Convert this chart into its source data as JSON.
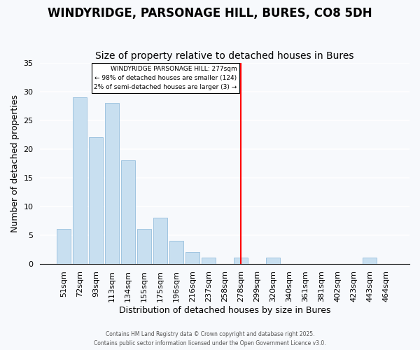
{
  "title": "WINDYRIDGE, PARSONAGE HILL, BURES, CO8 5DH",
  "subtitle": "Size of property relative to detached houses in Bures",
  "xlabel": "Distribution of detached houses by size in Bures",
  "ylabel": "Number of detached properties",
  "bar_labels": [
    "51sqm",
    "72sqm",
    "93sqm",
    "113sqm",
    "134sqm",
    "155sqm",
    "175sqm",
    "196sqm",
    "216sqm",
    "237sqm",
    "258sqm",
    "278sqm",
    "299sqm",
    "320sqm",
    "340sqm",
    "361sqm",
    "381sqm",
    "402sqm",
    "423sqm",
    "443sqm",
    "464sqm"
  ],
  "bar_heights": [
    6,
    29,
    22,
    28,
    18,
    6,
    8,
    4,
    2,
    1,
    0,
    1,
    0,
    1,
    0,
    0,
    0,
    0,
    0,
    1,
    0
  ],
  "bar_color": "#c8dff0",
  "bar_edge_color": "#a0c4e0",
  "vline_color": "red",
  "vline_label_line1": "WINDYRIDGE PARSONAGE HILL: 277sqm",
  "vline_label_line2": "← 98% of detached houses are smaller (124)",
  "vline_label_line3": "2% of semi-detached houses are larger (3) →",
  "ylim": [
    0,
    35
  ],
  "yticks": [
    0,
    5,
    10,
    15,
    20,
    25,
    30,
    35
  ],
  "footnote1": "Contains HM Land Registry data © Crown copyright and database right 2025.",
  "footnote2": "Contains public sector information licensed under the Open Government Licence v3.0.",
  "bg_color": "#f7f9fc",
  "grid_color": "#ffffff",
  "title_fontsize": 12,
  "subtitle_fontsize": 10,
  "axis_fontsize": 9,
  "tick_fontsize": 8
}
